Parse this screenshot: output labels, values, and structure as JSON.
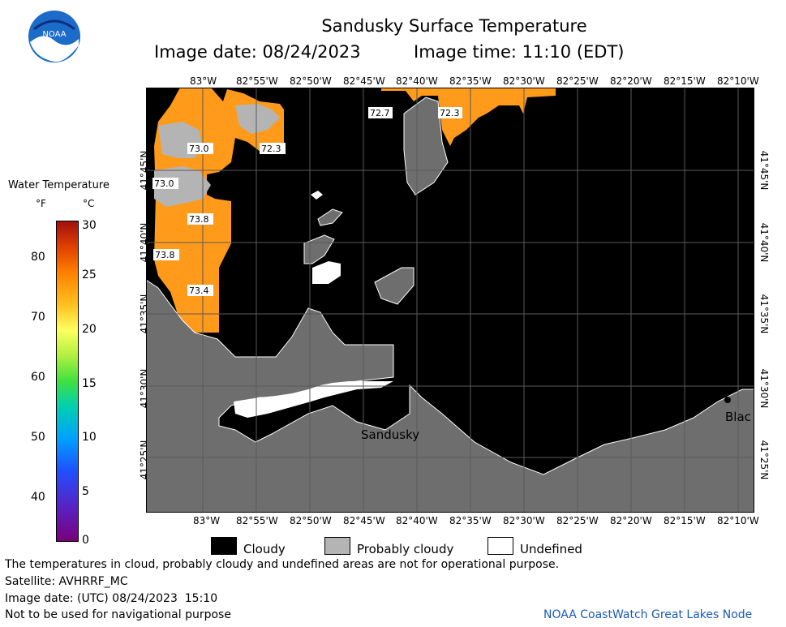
{
  "header": {
    "title": "Sandusky Surface Temperature",
    "image_date": "Image date: 08/24/2023",
    "image_time": "Image time: 11:10 (EDT)"
  },
  "logo": {
    "text": "NOAA"
  },
  "map": {
    "lon_labels": [
      "83°W",
      "82°55'W",
      "82°50'W",
      "82°45'W",
      "82°40'W",
      "82°35'W",
      "82°30'W",
      "82°25'W",
      "82°20'W",
      "82°15'W",
      "82°10'W"
    ],
    "lat_labels": [
      "41°45'N",
      "41°40'N",
      "41°35'N",
      "41°30'N",
      "41°25'N"
    ],
    "place_labels": [
      "Sandusky",
      "Blac"
    ],
    "temp_labels": [
      "72.7",
      "72.3",
      "73.0",
      "72.3",
      "73.0",
      "73.8",
      "73.8",
      "73.4"
    ]
  },
  "legend": {
    "title": "Water Temperature",
    "unit_f": "°F",
    "unit_c": "°C",
    "f_ticks": [
      "80",
      "70",
      "60",
      "50",
      "40"
    ],
    "c_ticks": [
      "30",
      "25",
      "20",
      "15",
      "10",
      "5",
      "0"
    ],
    "categories": [
      {
        "label": "Cloudy",
        "color": "#000000"
      },
      {
        "label": "Probably cloudy",
        "color": "#b4b4b4"
      },
      {
        "label": "Undefined",
        "color": "#ffffff"
      }
    ]
  },
  "footer": {
    "disclaimer": "The temperatures in cloud, probably cloudy and undefined areas are not for operational purpose.",
    "satellite": "Satellite: AVHRRF_MC",
    "utc_date": "Image date: (UTC) 08/24/2023  15:10",
    "nav_warning": "Not to be used for navigational purpose",
    "credit": "NOAA CoastWatch Great Lakes Node"
  },
  "colors": {
    "land": "#6e6e6e",
    "cloud": "#000000",
    "water_warm": "#ff9a1a",
    "credit": "#1a5bb5"
  }
}
